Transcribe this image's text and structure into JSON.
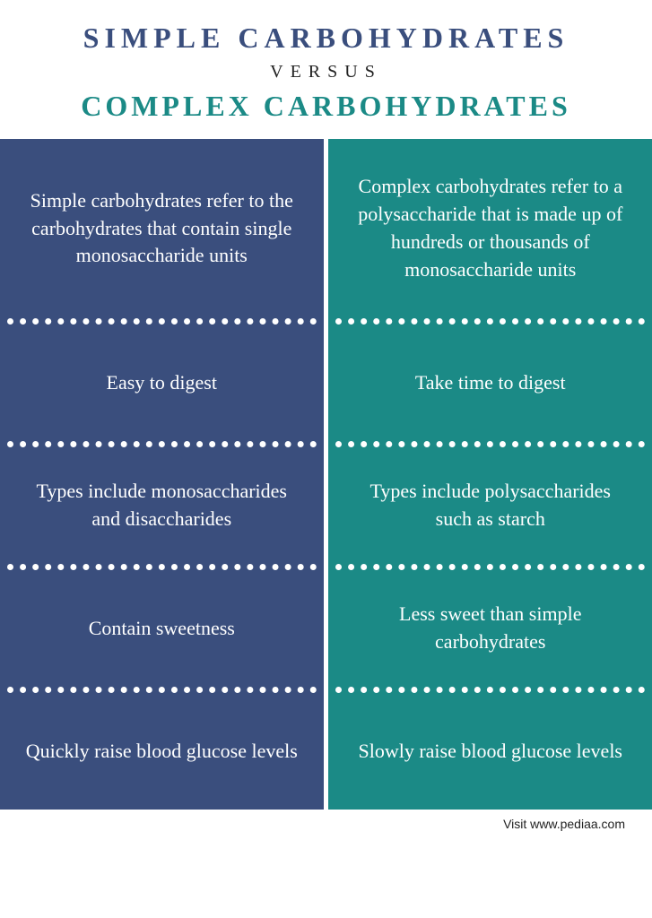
{
  "header": {
    "title_simple": "SIMPLE  CARBOHYDRATES",
    "versus": "VERSUS",
    "title_complex": "COMPLEX CARBOHYDRATES",
    "simple_color": "#3a4e7d",
    "complex_color": "#1b8a86"
  },
  "rows": {
    "r0_simple": "Simple carbohydrates refer to the carbohydrates that contain single monosaccharide units",
    "r0_complex": "Complex carbohydrates refer to a polysaccharide that is made up of hundreds or thousands of monosaccharide units",
    "r1_simple": "Easy to digest",
    "r1_complex": "Take time to digest",
    "r2_simple": "Types include monosaccharides and disaccharides",
    "r2_complex": "Types include polysaccharides such as starch",
    "r3_simple": "Contain sweetness",
    "r3_complex": "Less sweet than simple carbohydrates",
    "r4_simple": "Quickly raise blood glucose levels",
    "r4_complex": "Slowly raise blood glucose levels"
  },
  "footer": {
    "text": "Visit www.pediaa.com"
  },
  "style": {
    "simple_bg": "#3a4e7d",
    "complex_bg": "#1b8a86",
    "text_color": "#ffffff",
    "divider_style": "dotted",
    "cell_fontsize": 22
  }
}
